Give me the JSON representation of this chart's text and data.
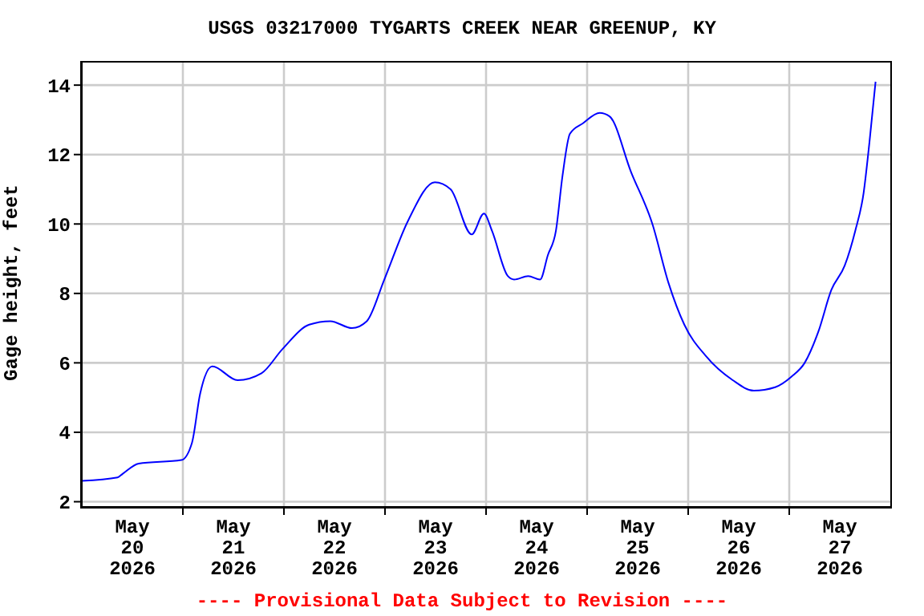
{
  "chart_data": {
    "type": "line",
    "title": "USGS 03217000 TYGARTS CREEK NEAR GREENUP, KY",
    "ylabel": "Gage height, feet",
    "annotations": [
      "---- Provisional Data Subject to Revision ----"
    ],
    "x": [
      "2026-05-20T00:00",
      "2026-05-20T08:30",
      "2026-05-20T09:40",
      "2026-05-20T13:30",
      "2026-05-20T23:40",
      "2026-05-21T02:10",
      "2026-05-21T04:05",
      "2026-05-21T07:00",
      "2026-05-21T13:00",
      "2026-05-21T18:40",
      "2026-05-21T23:40",
      "2026-05-22T06:00",
      "2026-05-22T11:00",
      "2026-05-22T16:10",
      "2026-05-22T19:40",
      "2026-05-22T23:50",
      "2026-05-23T05:30",
      "2026-05-23T11:50",
      "2026-05-23T15:35",
      "2026-05-23T20:35",
      "2026-05-23T23:30",
      "2026-05-24T01:25",
      "2026-05-24T05:10",
      "2026-05-24T06:40",
      "2026-05-24T10:00",
      "2026-05-24T12:50",
      "2026-05-24T14:40",
      "2026-05-24T16:35",
      "2026-05-24T18:10",
      "2026-05-24T19:55",
      "2026-05-24T23:00",
      "2026-05-25T03:00",
      "2026-05-25T05:20",
      "2026-05-25T10:25",
      "2026-05-25T15:30",
      "2026-05-25T19:20",
      "2026-05-25T23:05",
      "2026-05-26T04:10",
      "2026-05-26T10:35",
      "2026-05-26T15:35",
      "2026-05-26T20:40",
      "2026-05-27T00:30",
      "2026-05-27T03:40",
      "2026-05-27T06:55",
      "2026-05-27T10:00",
      "2026-05-27T13:10",
      "2026-05-27T15:40",
      "2026-05-27T17:40",
      "2026-05-27T19:00",
      "2026-05-27T20:30"
    ],
    "series": [
      {
        "color": "#0000ff",
        "values": [
          2.6,
          2.7,
          2.8,
          3.1,
          3.2,
          3.7,
          5.1,
          5.9,
          5.5,
          5.7,
          6.4,
          7.1,
          7.2,
          7.0,
          7.2,
          8.4,
          10.1,
          11.2,
          11.0,
          9.7,
          10.3,
          9.8,
          8.5,
          8.4,
          8.5,
          8.4,
          9.1,
          9.8,
          11.4,
          12.6,
          12.9,
          13.2,
          13.1,
          11.5,
          10.0,
          8.3,
          7.1,
          6.2,
          5.5,
          5.2,
          5.3,
          5.6,
          6.0,
          6.9,
          8.1,
          8.8,
          9.8,
          10.9,
          12.3,
          14.1
        ]
      }
    ],
    "xlim": [
      "2026-05-20T00:00",
      "2026-05-28T00:00"
    ],
    "xticks": [
      {
        "value": "2026-05-20T12:00",
        "label": "May\n20\n2026"
      },
      {
        "value": "2026-05-21T00:00",
        "label": null
      },
      {
        "value": "2026-05-21T12:00",
        "label": "May\n21\n2026"
      },
      {
        "value": "2026-05-22T00:00",
        "label": null
      },
      {
        "value": "2026-05-22T12:00",
        "label": "May\n22\n2026"
      },
      {
        "value": "2026-05-23T00:00",
        "label": null
      },
      {
        "value": "2026-05-23T12:00",
        "label": "May\n23\n2026"
      },
      {
        "value": "2026-05-24T00:00",
        "label": null
      },
      {
        "value": "2026-05-24T12:00",
        "label": "May\n24\n2026"
      },
      {
        "value": "2026-05-25T00:00",
        "label": null
      },
      {
        "value": "2026-05-25T12:00",
        "label": "May\n25\n2026"
      },
      {
        "value": "2026-05-26T00:00",
        "label": null
      },
      {
        "value": "2026-05-26T12:00",
        "label": "May\n26\n2026"
      },
      {
        "value": "2026-05-27T00:00",
        "label": null
      },
      {
        "value": "2026-05-27T12:00",
        "label": "May\n27\n2026"
      }
    ],
    "ylim": [
      1.85,
      14.65
    ],
    "yticks": [
      2,
      4,
      6,
      8,
      10,
      12,
      14
    ],
    "grid": true,
    "marker": "none",
    "line_style": "solid"
  }
}
